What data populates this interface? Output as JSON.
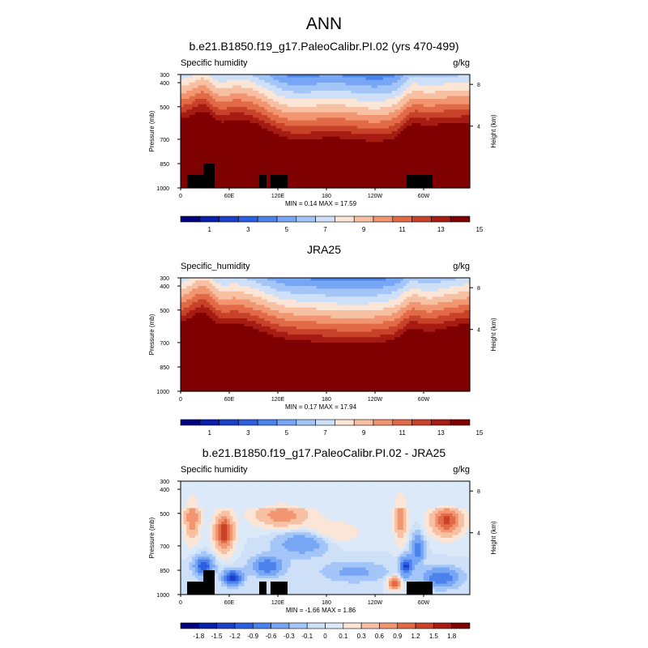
{
  "page_title": "ANN",
  "chart_data": [
    {
      "type": "heatmap",
      "title": "b.e21.B1850.f19_g17.PaleoCalibr.PI.02 (yrs 470-499)",
      "left_label": "Specific humidity",
      "right_label": "g/kg",
      "ylabel": "Pressure (mb)",
      "ylabel_right": "Height (km)",
      "yticks": [
        "300",
        "400",
        "500",
        "700",
        "850",
        "1000"
      ],
      "height_ticks": [
        "8",
        "4"
      ],
      "xticks": [
        "0",
        "60E",
        "120E",
        "180",
        "120W",
        "60W"
      ],
      "stats": "MIN =   0.14  MAX =  17.59",
      "colorbar_labels": [
        "1",
        "3",
        "5",
        "7",
        "9",
        "11",
        "13",
        "15"
      ],
      "field": "model"
    },
    {
      "type": "heatmap",
      "title": "JRA25",
      "left_label": "Specific_humidity",
      "right_label": "g/kg",
      "ylabel": "Pressure (mb)",
      "ylabel_right": "Height (km)",
      "yticks": [
        "300",
        "400",
        "500",
        "700",
        "850",
        "1000"
      ],
      "height_ticks": [
        "8",
        "4"
      ],
      "xticks": [
        "0",
        "60E",
        "120E",
        "180",
        "120W",
        "60W"
      ],
      "stats": "MIN =   0.17  MAX =  17.94",
      "colorbar_labels": [
        "1",
        "3",
        "5",
        "7",
        "9",
        "11",
        "13",
        "15"
      ],
      "field": "obs"
    },
    {
      "type": "heatmap",
      "title": "b.e21.B1850.f19_g17.PaleoCalibr.PI.02 - JRA25",
      "left_label": "Specific humidity",
      "right_label": "g/kg",
      "ylabel": "Pressure (mb)",
      "ylabel_right": "Height (km)",
      "yticks": [
        "300",
        "400",
        "500",
        "700",
        "850",
        "1000"
      ],
      "height_ticks": [
        "8",
        "4"
      ],
      "xticks": [
        "0",
        "60E",
        "120E",
        "180",
        "120W",
        "60W"
      ],
      "stats": "MIN =  -1.66  MAX =   1.86",
      "colorbar_labels": [
        "-1.8",
        "-1.5",
        "-1.2",
        "-0.9",
        "-0.6",
        "-0.3",
        "-0.1",
        "0",
        "0.1",
        "0.3",
        "0.6",
        "0.9",
        "1.2",
        "1.5",
        "1.8"
      ],
      "field": "diff"
    }
  ],
  "colors": {
    "abs_scale": [
      "#00007f",
      "#0a1fa8",
      "#1c3fc8",
      "#2b5ee0",
      "#4b82ec",
      "#77a6f4",
      "#a3c5f8",
      "#cde0f8",
      "#fbe5d6",
      "#f8c0a2",
      "#f19670",
      "#e26a47",
      "#c8422a",
      "#a61c12",
      "#7f0000"
    ],
    "diff_scale": [
      "#00007f",
      "#0a1fa8",
      "#1c3fc8",
      "#2b5ee0",
      "#4b82ec",
      "#77a6f4",
      "#a3c5f8",
      "#cde0f8",
      "#dbe9f8",
      "#fbe5d6",
      "#f8c0a2",
      "#f19670",
      "#e26a47",
      "#c8422a",
      "#a61c12",
      "#7f0000"
    ],
    "topography": "#000000"
  }
}
